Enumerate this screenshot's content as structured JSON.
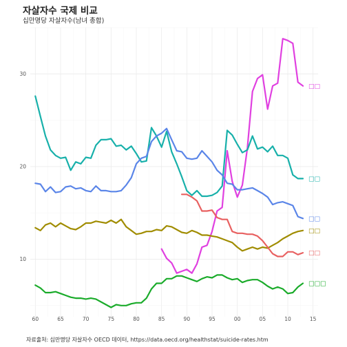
{
  "title": "자살자수 국제 비교",
  "subtitle": "십만명당 자살자수(남녀 총합)",
  "caption": "자료출처: 십만명당 자살자수 OECD 데이터, https://data.oecd.org/healthstat/suicide-rates.htm",
  "chart_data": {
    "type": "line",
    "title": "자살자수 국제 비교",
    "subtitle": "십만명당 자살자수(남녀 총합)",
    "xlabel": "",
    "ylabel": "",
    "x_ticks": [
      1960,
      1965,
      1970,
      1975,
      1980,
      1985,
      1990,
      1995,
      2000,
      2005,
      2010,
      2015
    ],
    "x_tick_labels": [
      "60",
      "65",
      "70",
      "75",
      "80",
      "85",
      "90",
      "95",
      "00",
      "05",
      "10",
      "15"
    ],
    "y_ticks": [
      10,
      20,
      30
    ],
    "xlim": [
      1959,
      2016
    ],
    "ylim": [
      3.8,
      35
    ],
    "grid": true,
    "series": [
      {
        "name": "□□",
        "color": "#e040e0",
        "x": [
          1985,
          1986,
          1987,
          1988,
          1989,
          1990,
          1991,
          1992,
          1993,
          1994,
          1995,
          1996,
          1997,
          1998,
          1999,
          2000,
          2001,
          2002,
          2003,
          2004,
          2005,
          2006,
          2007,
          2008,
          2009,
          2010,
          2011,
          2012,
          2013
        ],
        "y": [
          11.1,
          10.1,
          9.6,
          8.5,
          8.7,
          8.9,
          8.5,
          9.5,
          11.3,
          11.5,
          13.0,
          15.2,
          15.6,
          21.7,
          18.4,
          16.7,
          18.0,
          22.0,
          28.1,
          29.5,
          29.9,
          26.2,
          28.7,
          29.0,
          33.8,
          33.6,
          33.3,
          29.1,
          28.7
        ]
      },
      {
        "name": "□□",
        "color": "#17b0aa",
        "x": [
          1960,
          1961,
          1962,
          1963,
          1964,
          1965,
          1966,
          1967,
          1968,
          1969,
          1970,
          1971,
          1972,
          1973,
          1974,
          1975,
          1976,
          1977,
          1978,
          1979,
          1980,
          1981,
          1982,
          1983,
          1984,
          1985,
          1986,
          1987,
          1988,
          1989,
          1990,
          1991,
          1992,
          1993,
          1994,
          1995,
          1996,
          1997,
          1998,
          1999,
          2000,
          2001,
          2002,
          2003,
          2004,
          2005,
          2006,
          2007,
          2008,
          2009,
          2010,
          2011,
          2012,
          2013
        ],
        "y": [
          27.6,
          25.4,
          23.3,
          21.8,
          21.2,
          20.9,
          21.0,
          19.6,
          20.5,
          20.3,
          21.0,
          20.9,
          22.3,
          22.9,
          22.9,
          23.0,
          22.2,
          22.3,
          21.8,
          22.2,
          21.4,
          20.5,
          20.6,
          24.2,
          23.3,
          22.1,
          23.8,
          21.6,
          20.3,
          18.9,
          17.4,
          16.9,
          17.4,
          16.8,
          16.8,
          16.9,
          17.2,
          17.9,
          23.9,
          23.4,
          22.4,
          21.5,
          21.8,
          23.3,
          21.9,
          22.1,
          21.6,
          22.2,
          21.2,
          21.2,
          20.9,
          19.1,
          18.7,
          18.7
        ]
      },
      {
        "name": "□□",
        "color": "#5a85e8",
        "x": [
          1960,
          1961,
          1962,
          1963,
          1964,
          1965,
          1966,
          1967,
          1968,
          1969,
          1970,
          1971,
          1972,
          1973,
          1974,
          1975,
          1976,
          1977,
          1978,
          1979,
          1980,
          1981,
          1982,
          1983,
          1984,
          1985,
          1986,
          1987,
          1988,
          1989,
          1990,
          1991,
          1992,
          1993,
          1994,
          1995,
          1996,
          1997,
          1998,
          1999,
          2000,
          2001,
          2002,
          2003,
          2004,
          2005,
          2006,
          2007,
          2008,
          2009,
          2010,
          2011,
          2012,
          2013
        ],
        "y": [
          18.2,
          18.1,
          17.3,
          17.8,
          17.2,
          17.3,
          17.8,
          17.9,
          17.6,
          17.7,
          17.4,
          17.3,
          17.9,
          17.4,
          17.4,
          17.3,
          17.3,
          17.4,
          18.0,
          18.8,
          20.3,
          20.9,
          21.1,
          22.7,
          23.3,
          23.6,
          24.1,
          22.9,
          21.7,
          21.6,
          20.9,
          20.8,
          20.9,
          21.7,
          21.1,
          20.5,
          19.6,
          19.1,
          18.2,
          18.1,
          17.5,
          17.5,
          17.6,
          17.7,
          17.4,
          17.1,
          16.7,
          15.9,
          16.1,
          16.2,
          16.0,
          15.8,
          14.6,
          14.4
        ]
      },
      {
        "name": "□□",
        "color": "#a08c00",
        "x": [
          1960,
          1961,
          1962,
          1963,
          1964,
          1965,
          1966,
          1967,
          1968,
          1969,
          1970,
          1971,
          1972,
          1973,
          1974,
          1975,
          1976,
          1977,
          1978,
          1979,
          1980,
          1981,
          1982,
          1983,
          1984,
          1985,
          1986,
          1987,
          1988,
          1989,
          1990,
          1991,
          1992,
          1993,
          1994,
          1995,
          1996,
          1997,
          1998,
          1999,
          2000,
          2001,
          2002,
          2003,
          2004,
          2005,
          2006,
          2007,
          2008,
          2009,
          2010,
          2011,
          2012,
          2013
        ],
        "y": [
          13.4,
          13.1,
          13.7,
          13.9,
          13.5,
          13.9,
          13.6,
          13.3,
          13.2,
          13.5,
          13.9,
          13.9,
          14.1,
          14.0,
          13.9,
          14.2,
          13.9,
          14.3,
          13.5,
          13.1,
          12.7,
          12.8,
          13.0,
          13.0,
          13.2,
          13.1,
          13.6,
          13.5,
          13.2,
          12.9,
          12.8,
          13.1,
          12.9,
          12.6,
          12.6,
          12.5,
          12.4,
          12.2,
          12.0,
          11.8,
          11.3,
          10.9,
          11.1,
          11.3,
          11.1,
          11.3,
          11.2,
          11.5,
          11.8,
          12.2,
          12.5,
          12.8,
          13.0,
          13.1
        ]
      },
      {
        "name": "□□",
        "color": "#e86060",
        "x": [
          1989,
          1990,
          1991,
          1992,
          1993,
          1994,
          1995,
          1996,
          1997,
          1998,
          1999,
          2000,
          2001,
          2002,
          2003,
          2004,
          2005,
          2006,
          2007,
          2008,
          2009,
          2010,
          2011,
          2012,
          2013
        ],
        "y": [
          17.0,
          17.0,
          16.7,
          16.3,
          15.2,
          15.2,
          15.3,
          14.5,
          14.3,
          14.3,
          13.0,
          12.8,
          12.8,
          12.7,
          12.7,
          12.5,
          12.0,
          11.3,
          10.6,
          10.3,
          10.3,
          10.8,
          10.8,
          10.5,
          10.7
        ]
      },
      {
        "name": "□□□",
        "color": "#1aab2a",
        "x": [
          1960,
          1961,
          1962,
          1963,
          1964,
          1965,
          1966,
          1967,
          1968,
          1969,
          1970,
          1971,
          1972,
          1973,
          1974,
          1975,
          1976,
          1977,
          1978,
          1979,
          1980,
          1981,
          1982,
          1983,
          1984,
          1985,
          1986,
          1987,
          1988,
          1989,
          1990,
          1991,
          1992,
          1993,
          1994,
          1995,
          1996,
          1997,
          1998,
          1999,
          2000,
          2001,
          2002,
          2003,
          2004,
          2005,
          2006,
          2007,
          2008,
          2009,
          2010,
          2011,
          2012,
          2013
        ],
        "y": [
          7.2,
          6.9,
          6.4,
          6.4,
          6.5,
          6.3,
          6.1,
          5.9,
          5.8,
          5.8,
          5.7,
          5.8,
          5.7,
          5.4,
          5.1,
          4.8,
          5.1,
          5.0,
          5.0,
          5.2,
          5.3,
          5.3,
          5.8,
          6.8,
          7.4,
          7.4,
          7.9,
          7.9,
          8.2,
          8.2,
          8.0,
          7.8,
          7.6,
          7.9,
          8.1,
          8.0,
          8.3,
          8.3,
          8.0,
          7.8,
          7.9,
          7.5,
          7.7,
          7.8,
          7.8,
          7.5,
          7.1,
          6.8,
          7.0,
          6.8,
          6.3,
          6.4,
          7.0,
          7.4
        ]
      }
    ]
  }
}
